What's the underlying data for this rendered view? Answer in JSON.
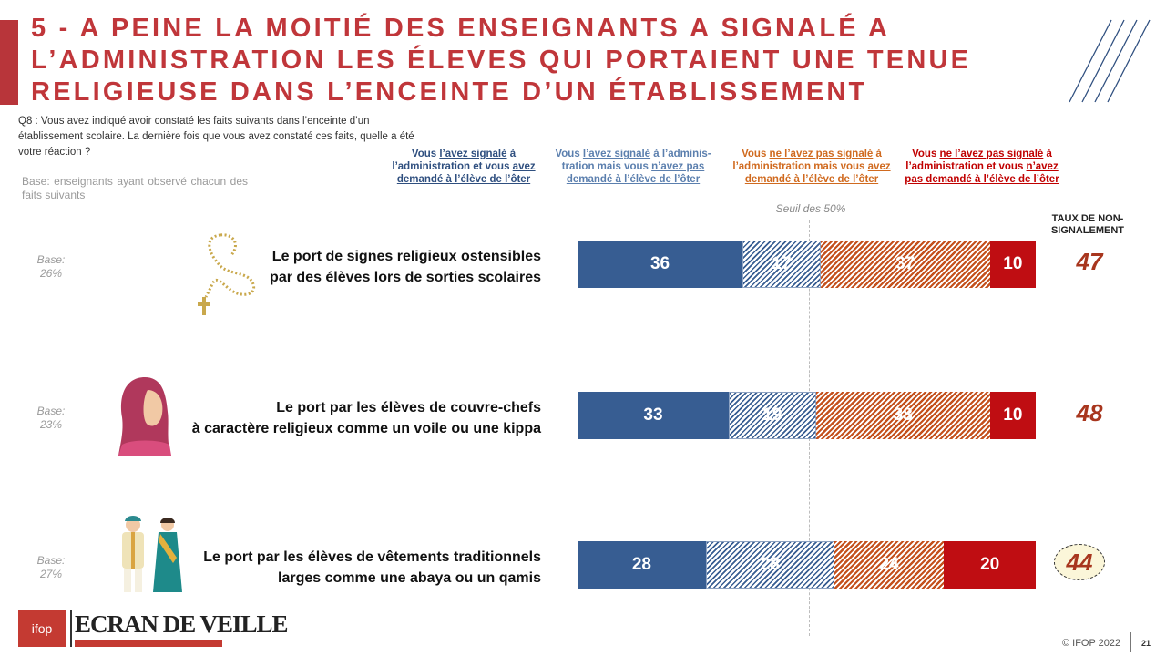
{
  "title": "5 - A PEINE LA MOITIÉ DES ENSEIGNANTS A SIGNALÉ A L’ADMINISTRATION LES ÉLEVES QUI PORTAIENT UNE TENUE RELIGIEUSE DANS L’ENCEINTE D’UN ÉTABLISSEMENT",
  "question": "Q8 : Vous avez indiqué avoir constaté les faits suivants dans l’enceinte d’un établissement scolaire. La dernière fois que vous avez constaté ces faits, quelle a été votre réaction ?",
  "base_note": "Base: enseignants ayant observé chacun des faits suivants",
  "legend": [
    {
      "parts": [
        "Vous ",
        "l’avez signalé",
        " à l’administration et vous ",
        "avez demandé à l’élève de l’ôter",
        ""
      ],
      "color": "#2f4f7f"
    },
    {
      "parts": [
        "Vous ",
        "l’avez signalé",
        " à l’adminis-tration mais vous ",
        "n’avez pas demandé à l’élève de l’ôter",
        ""
      ],
      "color": "#5b7fae"
    },
    {
      "parts": [
        "Vous ",
        "ne l’avez pas signalé",
        " à l’administration mais vous ",
        "avez demandé à l’élève de l’ôter",
        ""
      ],
      "color": "#d06a1f"
    },
    {
      "parts": [
        "Vous ",
        "ne l’avez pas signalé",
        " à l’administration et vous ",
        "n’avez pas demandé à l’élève de l’ôter",
        ""
      ],
      "color": "#c00000"
    }
  ],
  "seuil_label": "Seuil des 50%",
  "taux_header": "TAUX DE NON-SIGNALEMENT",
  "rows": [
    {
      "base_label": "Base:",
      "base_value": "26%",
      "label_line1": "Le port de signes religieux ostensibles",
      "label_line2": "par des élèves lors de sorties scolaires",
      "taux": "47"
    },
    {
      "base_label": "Base:",
      "base_value": "23%",
      "label_line1": "Le port par les élèves de couvre-chefs",
      "label_line2": "à caractère religieux comme un voile ou une kippa",
      "taux": "48"
    },
    {
      "base_label": "Base:",
      "base_value": "27%",
      "label_line1": "Le port par les élèves de vêtements traditionnels",
      "label_line2": "larges comme une abaya ou un qamis",
      "taux": "44"
    }
  ],
  "chart_data": {
    "type": "bar",
    "orientation": "horizontal",
    "stacked": true,
    "categories": [
      "Le port de signes religieux ostensibles par des élèves lors de sorties scolaires",
      "Le port par les élèves de couvre-chefs à caractère religieux comme un voile ou une kippa",
      "Le port par les élèves de vêtements traditionnels larges comme une abaya ou un qamis"
    ],
    "series": [
      {
        "name": "Vous l’avez signalé à l’administration et vous avez demandé à l’élève de l’ôter",
        "values": [
          36,
          33,
          28
        ],
        "color": "#375d92"
      },
      {
        "name": "Vous l’avez signalé à l’adminis-tration mais vous n’avez pas demandé à l’élève de l’ôter",
        "values": [
          17,
          19,
          28
        ],
        "color": "#375d92"
      },
      {
        "name": "Vous ne l’avez pas signalé à l’administration mais vous avez demandé à l’élève de l’ôter",
        "values": [
          37,
          38,
          24
        ],
        "color": "#c4511d"
      },
      {
        "name": "Vous ne l’avez pas signalé à l’administration et vous n’avez pas demandé à l’élève de l’ôter",
        "values": [
          10,
          10,
          20
        ],
        "color": "#bf0d12"
      }
    ],
    "xlim": [
      0,
      100
    ],
    "reference_line": 50
  },
  "logos": {
    "ifop": "ifop",
    "ecran": "ECRAN DE VEILLE"
  },
  "footer": "© IFOP 2022",
  "page_number": "21",
  "colors": {
    "title": "#c0363a",
    "accent": "#b8353a",
    "taux": "#a8361e"
  }
}
